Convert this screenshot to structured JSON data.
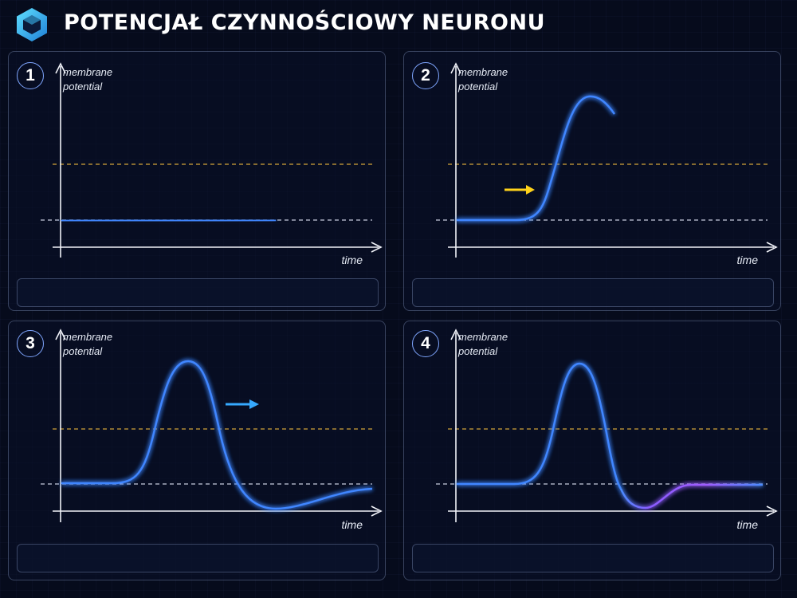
{
  "header": {
    "title": "POTENCJAŁ CZYNNOŚCIOWY NEURONU"
  },
  "colors": {
    "accent": "#3fa0ff",
    "curve": "#4a8cff",
    "threshold": "#d2a43a",
    "resting": "#c8cde0",
    "arrow_yellow": "#ffd21a",
    "arrow_blue": "#36a9ff",
    "hyperpolarization": "#a05cff"
  },
  "panels": [
    {
      "number": "1",
      "y_label_line1": "membrane",
      "y_label_line2": "potential",
      "x_label": "time",
      "caption": ""
    },
    {
      "number": "2",
      "y_label_line1": "membrane",
      "y_label_line2": "potential",
      "x_label": "time",
      "caption": ""
    },
    {
      "number": "3",
      "y_label_line1": "membrane",
      "y_label_line2": "potential",
      "x_label": "time",
      "caption": ""
    },
    {
      "number": "4",
      "y_label_line1": "membrane",
      "y_label_line2": "potential",
      "x_label": "time",
      "caption": ""
    }
  ]
}
